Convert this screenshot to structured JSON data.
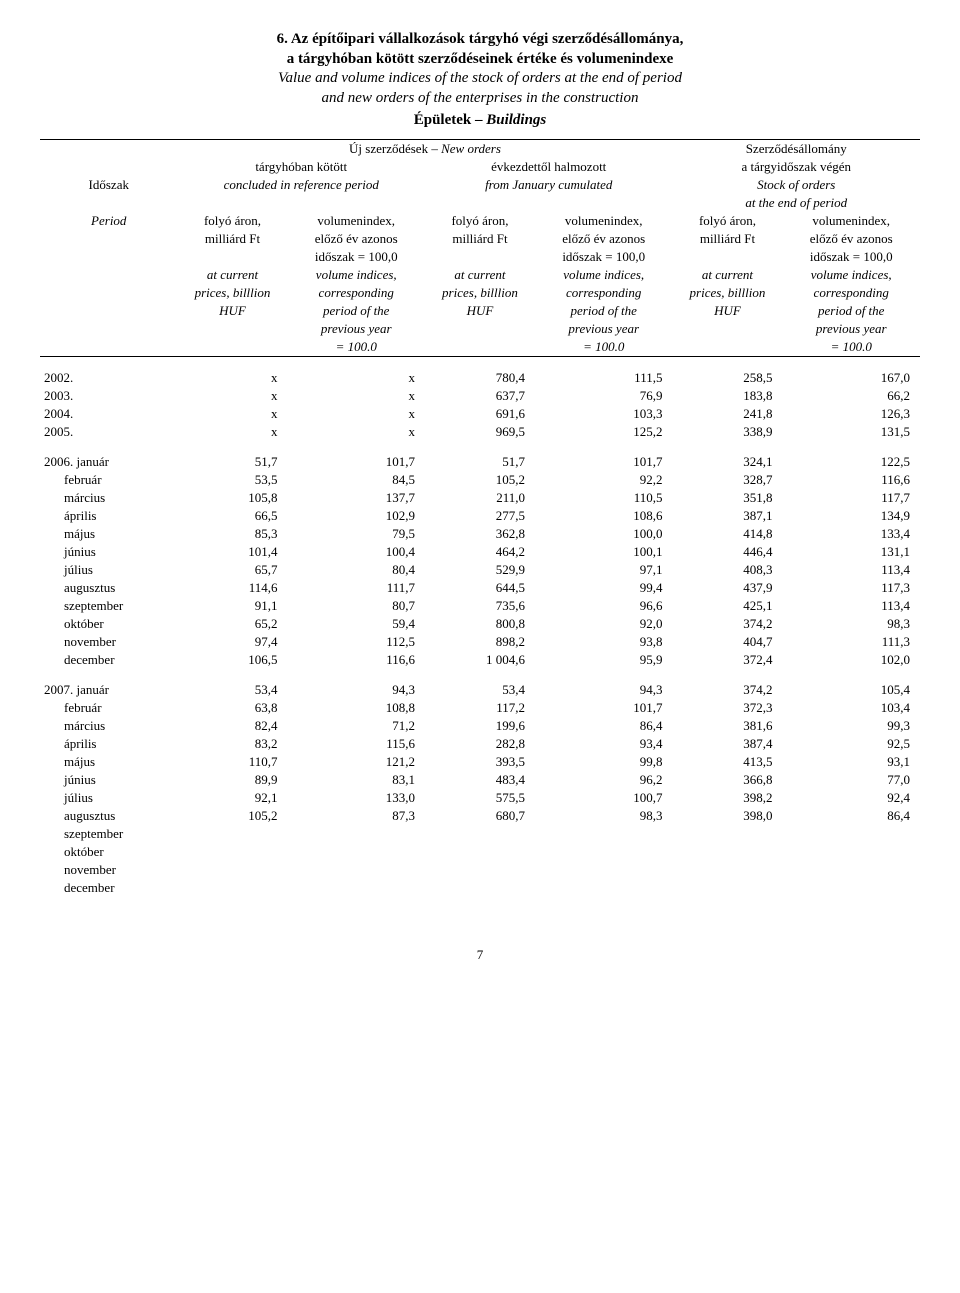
{
  "title": {
    "line1": "6. Az építőipari vállalkozások tárgyhó végi szerződésállománya,",
    "line2": "a tárgyhóban kötött szerződéseinek értéke és volumenindexe",
    "line3": "Value and volume indices of the stock of orders at the end of period",
    "line4": "and new orders of the enterprises in the construction",
    "subtitle_hu": "Épületek",
    "subtitle_en": "Buildings"
  },
  "header": {
    "new_orders_hu": "Új szerződések –",
    "new_orders_en": "New orders",
    "stock_hu": "Szerződésállomány",
    "concluded_hu": "tárgyhóban kötött",
    "cumulated_hu": "évkezdettől halmozott",
    "stock_end_hu": "a tárgyidőszak végén",
    "idoszak": "Időszak",
    "concluded_en": "concluded in reference period",
    "cumulated_en": "from January cumulated",
    "stock_of_orders": "Stock of orders",
    "at_end": "at the end of period",
    "period": "Period",
    "folya_aron": "folyó áron,",
    "milliard": "milliárd Ft",
    "volindex": "volumenindex,",
    "elozo": "előző év azonos",
    "idoszak100": "időszak = 100,0",
    "at_current": "at current",
    "prices": "prices, billlion",
    "huf": "HUF",
    "volind_en": "volume indices,",
    "corresp": "corresponding",
    "period_of": "period of the",
    "prev_year": "previous year",
    "eq100": "= 100.0"
  },
  "annual": [
    {
      "label": "2002.",
      "c1": "x",
      "c2": "x",
      "c3": "780,4",
      "c4": "111,5",
      "c5": "258,5",
      "c6": "167,0"
    },
    {
      "label": "2003.",
      "c1": "x",
      "c2": "x",
      "c3": "637,7",
      "c4": "76,9",
      "c5": "183,8",
      "c6": "66,2"
    },
    {
      "label": "2004.",
      "c1": "x",
      "c2": "x",
      "c3": "691,6",
      "c4": "103,3",
      "c5": "241,8",
      "c6": "126,3"
    },
    {
      "label": "2005.",
      "c1": "x",
      "c2": "x",
      "c3": "969,5",
      "c4": "125,2",
      "c5": "338,9",
      "c6": "131,5"
    }
  ],
  "y2006": [
    {
      "label": "2006. január",
      "c1": "51,7",
      "c2": "101,7",
      "c3": "51,7",
      "c4": "101,7",
      "c5": "324,1",
      "c6": "122,5"
    },
    {
      "label": "február",
      "c1": "53,5",
      "c2": "84,5",
      "c3": "105,2",
      "c4": "92,2",
      "c5": "328,7",
      "c6": "116,6"
    },
    {
      "label": "március",
      "c1": "105,8",
      "c2": "137,7",
      "c3": "211,0",
      "c4": "110,5",
      "c5": "351,8",
      "c6": "117,7"
    },
    {
      "label": "április",
      "c1": "66,5",
      "c2": "102,9",
      "c3": "277,5",
      "c4": "108,6",
      "c5": "387,1",
      "c6": "134,9"
    },
    {
      "label": "május",
      "c1": "85,3",
      "c2": "79,5",
      "c3": "362,8",
      "c4": "100,0",
      "c5": "414,8",
      "c6": "133,4"
    },
    {
      "label": "június",
      "c1": "101,4",
      "c2": "100,4",
      "c3": "464,2",
      "c4": "100,1",
      "c5": "446,4",
      "c6": "131,1"
    },
    {
      "label": "július",
      "c1": "65,7",
      "c2": "80,4",
      "c3": "529,9",
      "c4": "97,1",
      "c5": "408,3",
      "c6": "113,4"
    },
    {
      "label": "augusztus",
      "c1": "114,6",
      "c2": "111,7",
      "c3": "644,5",
      "c4": "99,4",
      "c5": "437,9",
      "c6": "117,3"
    },
    {
      "label": "szeptember",
      "c1": "91,1",
      "c2": "80,7",
      "c3": "735,6",
      "c4": "96,6",
      "c5": "425,1",
      "c6": "113,4"
    },
    {
      "label": "október",
      "c1": "65,2",
      "c2": "59,4",
      "c3": "800,8",
      "c4": "92,0",
      "c5": "374,2",
      "c6": "98,3"
    },
    {
      "label": "november",
      "c1": "97,4",
      "c2": "112,5",
      "c3": "898,2",
      "c4": "93,8",
      "c5": "404,7",
      "c6": "111,3"
    },
    {
      "label": "december",
      "c1": "106,5",
      "c2": "116,6",
      "c3": "1 004,6",
      "c4": "95,9",
      "c5": "372,4",
      "c6": "102,0"
    }
  ],
  "y2007": [
    {
      "label": "2007. január",
      "c1": "53,4",
      "c2": "94,3",
      "c3": "53,4",
      "c4": "94,3",
      "c5": "374,2",
      "c6": "105,4"
    },
    {
      "label": "február",
      "c1": "63,8",
      "c2": "108,8",
      "c3": "117,2",
      "c4": "101,7",
      "c5": "372,3",
      "c6": "103,4"
    },
    {
      "label": "március",
      "c1": "82,4",
      "c2": "71,2",
      "c3": "199,6",
      "c4": "86,4",
      "c5": "381,6",
      "c6": "99,3"
    },
    {
      "label": "április",
      "c1": "83,2",
      "c2": "115,6",
      "c3": "282,8",
      "c4": "93,4",
      "c5": "387,4",
      "c6": "92,5"
    },
    {
      "label": "május",
      "c1": "110,7",
      "c2": "121,2",
      "c3": "393,5",
      "c4": "99,8",
      "c5": "413,5",
      "c6": "93,1"
    },
    {
      "label": "június",
      "c1": "89,9",
      "c2": "83,1",
      "c3": "483,4",
      "c4": "96,2",
      "c5": "366,8",
      "c6": "77,0"
    },
    {
      "label": "július",
      "c1": "92,1",
      "c2": "133,0",
      "c3": "575,5",
      "c4": "100,7",
      "c5": "398,2",
      "c6": "92,4"
    },
    {
      "label": "augusztus",
      "c1": "105,2",
      "c2": "87,3",
      "c3": "680,7",
      "c4": "98,3",
      "c5": "398,0",
      "c6": "86,4"
    },
    {
      "label": "szeptember",
      "c1": "",
      "c2": "",
      "c3": "",
      "c4": "",
      "c5": "",
      "c6": ""
    },
    {
      "label": "október",
      "c1": "",
      "c2": "",
      "c3": "",
      "c4": "",
      "c5": "",
      "c6": ""
    },
    {
      "label": "november",
      "c1": "",
      "c2": "",
      "c3": "",
      "c4": "",
      "c5": "",
      "c6": ""
    },
    {
      "label": "december",
      "c1": "",
      "c2": "",
      "c3": "",
      "c4": "",
      "c5": "",
      "c6": ""
    }
  ],
  "page_number": "7"
}
